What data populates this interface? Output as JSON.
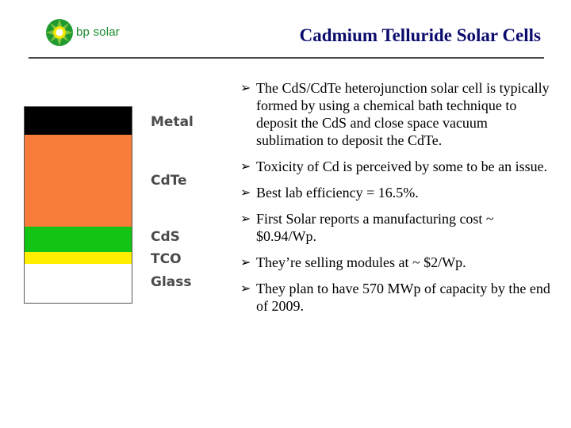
{
  "header": {
    "logo_text": "bp solar",
    "title": "Cadmium Telluride Solar Cells"
  },
  "diagram": {
    "layers": [
      {
        "name": "Metal",
        "color": "#000000"
      },
      {
        "name": "CdTe",
        "color": "#f97c3c"
      },
      {
        "name": "CdS",
        "color": "#14c414"
      },
      {
        "name": "TCO",
        "color": "#ffee00"
      },
      {
        "name": "Glass",
        "color": "#ffffff"
      }
    ]
  },
  "bullets": [
    "The CdS/CdTe heterojunction solar cell is typically formed by using a chemical bath technique to deposit the CdS and close space vacuum sublimation to deposit the CdTe.",
    "Toxicity of Cd is perceived by some to be an issue.",
    "Best lab efficiency = 16.5%.",
    "First Solar reports a manufacturing cost ~ $0.94/Wp.",
    "They’re selling modules at ~ $2/Wp.",
    "They plan to have 570 MWp of capacity by the end of 2009."
  ],
  "bullet_marker": "➢"
}
